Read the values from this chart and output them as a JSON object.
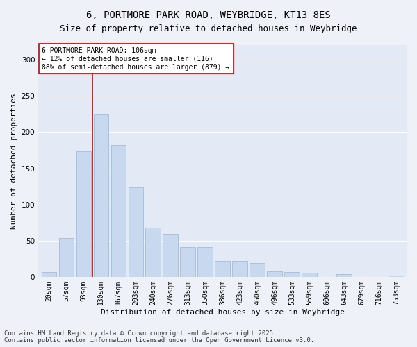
{
  "title_line1": "6, PORTMORE PARK ROAD, WEYBRIDGE, KT13 8ES",
  "title_line2": "Size of property relative to detached houses in Weybridge",
  "xlabel": "Distribution of detached houses by size in Weybridge",
  "ylabel": "Number of detached properties",
  "categories": [
    "20sqm",
    "57sqm",
    "93sqm",
    "130sqm",
    "167sqm",
    "203sqm",
    "240sqm",
    "276sqm",
    "313sqm",
    "350sqm",
    "386sqm",
    "423sqm",
    "460sqm",
    "496sqm",
    "533sqm",
    "569sqm",
    "606sqm",
    "643sqm",
    "679sqm",
    "716sqm",
    "753sqm"
  ],
  "values": [
    7,
    54,
    174,
    225,
    182,
    124,
    68,
    60,
    41,
    41,
    22,
    22,
    19,
    8,
    7,
    6,
    0,
    4,
    0,
    0,
    2
  ],
  "bar_color": "#c8d8ee",
  "bar_edge_color": "#9ab4d4",
  "vline_color": "#cc0000",
  "vline_x": 2.5,
  "annotation_text": "6 PORTMORE PARK ROAD: 106sqm\n← 12% of detached houses are smaller (116)\n88% of semi-detached houses are larger (879) →",
  "annotation_box_color": "#ffffff",
  "annotation_box_edge": "#cc0000",
  "ylim": [
    0,
    320
  ],
  "yticks": [
    0,
    50,
    100,
    150,
    200,
    250,
    300
  ],
  "footnote_line1": "Contains HM Land Registry data © Crown copyright and database right 2025.",
  "footnote_line2": "Contains public sector information licensed under the Open Government Licence v3.0.",
  "bg_color": "#eef2f8",
  "plot_bg_color": "#e4eaf5",
  "grid_color": "#ffffff",
  "title_fontsize": 10,
  "subtitle_fontsize": 9,
  "axis_label_fontsize": 8,
  "tick_fontsize": 7,
  "annotation_fontsize": 7,
  "footnote_fontsize": 6.5
}
